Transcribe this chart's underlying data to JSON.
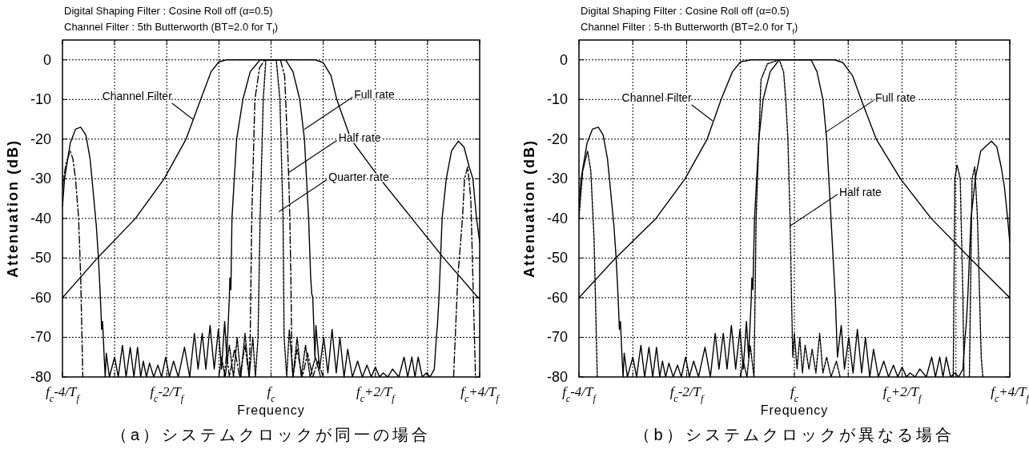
{
  "chart_data": [
    {
      "type": "line",
      "title": "Digital Shaping Filter : Cosine Roll off (α=0.5)",
      "subtitle": "Channel Filter : 5th Butterworth (BT=2.0 for T$_{f}$)",
      "xlabel": "Frequency",
      "ylabel": "Attenuation (dB)",
      "xlim": [
        -4,
        4
      ],
      "ylim": [
        -80,
        5
      ],
      "xticks": [
        {
          "value": -4,
          "label": "f$_{c}$-4/T$_{f}$"
        },
        {
          "value": -3,
          "label": null
        },
        {
          "value": -2,
          "label": "f$_{c}$-2/T$_{f}$"
        },
        {
          "value": -1,
          "label": null
        },
        {
          "value": 0,
          "label": "f$_{c}$"
        },
        {
          "value": 1,
          "label": null
        },
        {
          "value": 2,
          "label": "f$_{c}$+2/T$_{f}$"
        },
        {
          "value": 3,
          "label": null
        },
        {
          "value": 4,
          "label": "f$_{c}$+4/T$_{f}$"
        }
      ],
      "yticks": [
        -80,
        -70,
        -60,
        -50,
        -40,
        -30,
        -20,
        -10,
        0
      ],
      "grid": true,
      "series": [
        {
          "color": "#000000",
          "line_style": "solid",
          "x": [
            -4,
            -3.33,
            -2.6,
            -2.05,
            -1.63,
            -1.35,
            -1.15,
            -1.0,
            -0.85,
            0.85,
            1.0,
            1.15,
            1.26,
            1.53,
            2.09,
            2.7,
            3.31,
            3.97,
            4
          ],
          "values": [
            -60,
            -50,
            -40,
            -30,
            -20,
            -10,
            -3,
            -0.5,
            0,
            0,
            -0.7,
            -4,
            -10,
            -20,
            -30,
            -40,
            -50,
            -60,
            -60
          ]
        },
        {
          "color": "#000000",
          "line_style": "solid",
          "x": [
            -4,
            -3.96,
            -3.85,
            -3.75,
            -3.65,
            -3.55,
            -3.47,
            -3.42,
            -3.35,
            -3.31,
            -3.28,
            -3.26,
            -3.25,
            -3.23,
            -3.2,
            -3.18,
            -3.16,
            -3.1,
            -3.0,
            -2.93,
            -2.85,
            -2.78,
            -2.7,
            -2.63,
            -2.56,
            -2.5,
            -2.45,
            -2.39,
            -2.33,
            -2.25,
            -2.17,
            -2.1,
            -2.02,
            -1.95,
            -1.87,
            -1.78,
            -1.66,
            -1.56,
            -1.47,
            -1.4,
            -1.32,
            -1.25,
            -1.17,
            -1.09,
            -1.01,
            -0.95,
            -0.89,
            -0.85,
            -0.8,
            -0.79,
            -0.77,
            -0.75,
            -0.66,
            -0.54,
            -0.4,
            -0.21,
            0.28,
            0.42,
            0.55,
            0.64,
            0.72,
            0.76,
            0.78,
            0.8,
            0.84,
            0.86,
            0.93,
            1.01,
            1.09,
            1.17,
            1.25,
            1.32,
            1.4,
            1.47,
            1.56,
            1.66,
            1.75,
            1.84,
            1.92,
            2.0,
            2.08,
            2.15,
            2.24,
            2.33,
            2.45,
            2.55,
            2.62,
            2.7,
            2.76,
            2.82,
            2.9,
            2.98,
            3.05,
            3.13,
            3.17,
            3.19,
            3.22,
            3.28,
            3.36,
            3.46,
            3.59,
            3.7,
            3.8,
            3.87,
            3.94,
            4
          ],
          "values": [
            -37,
            -30,
            -21,
            -17.5,
            -17,
            -19,
            -25,
            -32,
            -42,
            -50,
            -58,
            -64,
            -68,
            -66,
            -75,
            -80,
            -74,
            -80,
            -75,
            -80,
            -72,
            -80,
            -72.5,
            -80,
            -72.5,
            -80,
            -76,
            -80,
            -76.5,
            -80,
            -77,
            -80,
            -75,
            -80,
            -76,
            -80,
            -72.5,
            -80,
            -69,
            -78,
            -69,
            -78,
            -67,
            -78,
            -68,
            -78,
            -66,
            -75,
            -60,
            -55,
            -58,
            -40,
            -20,
            -10,
            -3,
            0,
            0,
            -3,
            -10,
            -20,
            -40,
            -55,
            -59,
            -60,
            -75,
            -67,
            -78,
            -70,
            -79,
            -68,
            -79,
            -70,
            -80,
            -73,
            -80,
            -76,
            -80,
            -77,
            -80,
            -77.5,
            -80,
            -79,
            -80,
            -78,
            -80,
            -75,
            -80,
            -75,
            -80,
            -75,
            -80,
            -79,
            -80,
            -78,
            -70,
            -67,
            -60,
            -40,
            -30,
            -23,
            -20.5,
            -22,
            -27,
            -30,
            -40,
            -46
          ]
        },
        {
          "color": "#000000",
          "line_style": "dashed",
          "x": [
            -4,
            -3.93,
            -3.85,
            -3.8,
            -3.75,
            -3.69,
            -3.65,
            -3.61
          ],
          "values": [
            -32,
            -26,
            -23,
            -25,
            -30,
            -40,
            -55,
            -80
          ]
        },
        {
          "color": "#000000",
          "line_style": "dashed",
          "x": [
            -0.9,
            -0.85,
            -0.8,
            -0.7,
            -0.6,
            -0.5,
            -0.42,
            -0.4,
            -0.37,
            -0.31,
            -0.22,
            -0.12,
            0.18,
            0.26,
            0.28,
            0.34,
            0.36,
            0.38,
            0.4,
            0.42,
            0.5,
            0.6,
            0.7,
            0.8,
            0.9,
            1.0
          ],
          "values": [
            -80,
            -74,
            -80,
            -73,
            -80,
            -72,
            -80,
            -70,
            -40,
            -10,
            -2,
            0,
            0,
            -4,
            -10,
            -30,
            -40,
            -55,
            -75,
            -80,
            -73,
            -80,
            -74,
            -80,
            -76,
            -80
          ]
        },
        {
          "color": "#000000",
          "line_style": "dashed",
          "x": [
            3.5,
            3.58,
            3.67,
            3.71,
            3.77,
            3.83,
            3.88,
            3.92
          ],
          "values": [
            -80,
            -55,
            -40,
            -30,
            -27,
            -35,
            -60,
            -80
          ]
        },
        {
          "color": "#000000",
          "line_style": "dotted",
          "x": [
            -1.0,
            -0.95,
            -0.88,
            -0.8,
            -0.72,
            -0.65,
            -0.58,
            -0.5,
            -0.42,
            -0.35,
            -0.3,
            -0.25,
            -0.21,
            -0.15,
            -0.1,
            0.1,
            0.17,
            0.23,
            0.25,
            0.3,
            0.35,
            0.42,
            0.5,
            0.58,
            0.66,
            0.75,
            0.85,
            0.95
          ],
          "values": [
            -80,
            -75,
            -80,
            -72,
            -80,
            -70,
            -80,
            -69,
            -80,
            -70,
            -80,
            -70,
            -40,
            -10,
            0,
            0,
            -10,
            -40,
            -70,
            -80,
            -68,
            -80,
            -70,
            -80,
            -72,
            -80,
            -75,
            -80
          ]
        }
      ],
      "annotations": [
        {
          "text": "Channel Filter",
          "x": -1.5,
          "y": -15
        },
        {
          "text": "Full rate",
          "x": 0.64,
          "y": -17.5
        },
        {
          "text": "Half rate",
          "x": 0.34,
          "y": -28.4
        },
        {
          "text": "Quarter rate",
          "x": 0.15,
          "y": -38.3
        },
        "（a）システムクロックが同一の場合"
      ]
    },
    {
      "type": "line",
      "title": "Digital Shaping Filter : Cosine Roll off (α=0.5)",
      "subtitle": "Channel Filter : 5-th Butterworth (BT=2.0 for T$_{f}$)",
      "xlabel": "Frequency",
      "ylabel": "Attenuation (dB)",
      "xlim": [
        -4,
        4
      ],
      "ylim": [
        -80,
        5
      ],
      "xticks": [
        {
          "value": -4,
          "label": "f$_{c}$-4/T$_{f}$"
        },
        {
          "value": -3,
          "label": null
        },
        {
          "value": -2,
          "label": "f$_{c}$-2/T$_{f}$"
        },
        {
          "value": -1,
          "label": null
        },
        {
          "value": 0,
          "label": "f$_{c}$"
        },
        {
          "value": 1,
          "label": null
        },
        {
          "value": 2,
          "label": "f$_{c}$+2/T$_{f}$"
        },
        {
          "value": 3,
          "label": null
        },
        {
          "value": 4,
          "label": "f$_{c}$+4/T$_{f}$"
        }
      ],
      "yticks": [
        -80,
        -70,
        -60,
        -50,
        -40,
        -30,
        -20,
        -10,
        0
      ],
      "grid": true,
      "series": [
        {
          "color": "#000000",
          "line_style": "solid",
          "x": [
            -4,
            -3.32,
            -2.57,
            -2.03,
            -1.62,
            -1.36,
            -1.15,
            -1.0,
            -0.8,
            0.75,
            0.9,
            1.08,
            1.24,
            1.52,
            1.97,
            2.54,
            3.26,
            4
          ],
          "values": [
            -60,
            -50,
            -40,
            -30,
            -20,
            -10,
            -3,
            -0.5,
            0,
            0,
            -0.7,
            -4,
            -10,
            -20,
            -30,
            -40,
            -50,
            -60
          ]
        },
        {
          "color": "#000000",
          "line_style": "solid",
          "x": [
            -4,
            -3.96,
            -3.85,
            -3.75,
            -3.64,
            -3.55,
            -3.47,
            -3.42,
            -3.35,
            -3.31,
            -3.28,
            -3.26,
            -3.25,
            -3.23,
            -3.2,
            -3.18,
            -3.16,
            -3.1,
            -3.0,
            -2.93,
            -2.85,
            -2.78,
            -2.7,
            -2.63,
            -2.56,
            -2.5,
            -2.45,
            -2.39,
            -2.33,
            -2.25,
            -2.17,
            -2.1,
            -2.02,
            -1.95,
            -1.87,
            -1.78,
            -1.66,
            -1.56,
            -1.47,
            -1.4,
            -1.32,
            -1.25,
            -1.17,
            -1.09,
            -1.01,
            -0.95,
            -0.89,
            -0.85,
            -0.8,
            -0.79,
            -0.77,
            -0.74,
            -0.66,
            -0.58,
            -0.45,
            -0.28,
            0.31,
            0.42,
            0.53,
            0.6,
            0.68,
            0.74,
            0.76,
            0.8,
            0.87,
            0.93,
            1.01,
            1.09,
            1.17,
            1.25,
            1.32,
            1.4,
            1.47,
            1.56,
            1.66,
            1.75,
            1.84,
            1.92,
            2.0,
            2.08,
            2.15,
            2.24,
            2.33,
            2.45,
            2.55,
            2.62,
            2.7,
            2.76,
            2.82,
            2.9,
            2.98,
            3.05,
            3.13,
            3.17,
            3.19,
            3.22,
            3.28,
            3.36,
            3.46,
            3.66,
            3.76,
            3.84,
            3.9,
            3.96,
            4
          ],
          "values": [
            -37,
            -30,
            -21,
            -17.5,
            -17,
            -19,
            -25,
            -32,
            -42,
            -50,
            -58,
            -64,
            -68,
            -66,
            -75,
            -80,
            -74,
            -80,
            -75,
            -80,
            -72,
            -80,
            -72.5,
            -80,
            -72.5,
            -80,
            -76,
            -80,
            -76.5,
            -80,
            -77,
            -80,
            -75,
            -80,
            -76,
            -80,
            -72.5,
            -80,
            -69,
            -78,
            -69,
            -78,
            -67,
            -78,
            -68,
            -78,
            -66,
            -75,
            -60,
            -55,
            -58,
            -40,
            -20,
            -10,
            -3,
            0,
            0,
            -3,
            -10,
            -20,
            -40,
            -55,
            -60,
            -75,
            -67,
            -78,
            -70,
            -79,
            -68,
            -79,
            -70,
            -80,
            -73,
            -80,
            -76,
            -80,
            -77,
            -80,
            -77.5,
            -80,
            -79,
            -80,
            -78,
            -80,
            -75,
            -80,
            -75,
            -80,
            -75,
            -80,
            -79,
            -80,
            -78,
            -70,
            -67,
            -60,
            -40,
            -30,
            -23,
            -20.5,
            -22,
            -27,
            -32,
            -40,
            -46
          ]
        },
        {
          "color": "#000000",
          "line_style": "dotted",
          "x": [
            -4,
            -3.93,
            -3.84,
            -3.78,
            -3.72,
            -3.66
          ],
          "values": [
            -40,
            -28,
            -23,
            -28,
            -45,
            -80
          ]
        },
        {
          "color": "#000000",
          "line_style": "dotted",
          "x": [
            -1.0,
            -0.95,
            -0.88,
            -0.82,
            -0.75,
            -0.71,
            -0.62,
            -0.5,
            -0.28,
            -0.2,
            -0.16,
            -0.12,
            -0.08,
            -0.06,
            -0.03,
            0.0,
            0.05,
            0.1,
            0.15,
            0.2,
            0.27,
            0.33,
            0.4,
            0.47,
            0.53,
            0.6,
            0.68,
            0.78,
            0.85
          ],
          "values": [
            -80,
            -76,
            -80,
            -72,
            -80,
            -40,
            -5,
            -1,
            0,
            -3,
            -10,
            -20,
            -40,
            -55,
            -75,
            -69,
            -78,
            -70,
            -79,
            -72,
            -78,
            -73,
            -79,
            -69,
            -79,
            -75,
            -80,
            -76,
            -80
          ]
        },
        {
          "color": "#000000",
          "line_style": "dotted",
          "x": [
            2.95,
            2.98,
            3.02,
            3.08,
            3.13,
            3.15
          ],
          "values": [
            -80,
            -30,
            -26.5,
            -30,
            -60,
            -80
          ]
        },
        {
          "color": "#000000",
          "line_style": "dotted",
          "x": [
            3.25,
            3.3,
            3.35,
            3.4,
            3.47,
            3.5
          ],
          "values": [
            -80,
            -30,
            -27,
            -40,
            -75,
            -80
          ]
        }
      ],
      "annotations": [
        {
          "text": "Channel Filter",
          "x": -1.52,
          "y": -15.4
        },
        {
          "text": "Full rate",
          "x": 0.58,
          "y": -18.3
        },
        {
          "text": "Half rate",
          "x": -0.09,
          "y": -42
        },
        "（b）システムクロックが異なる場合"
      ]
    }
  ]
}
